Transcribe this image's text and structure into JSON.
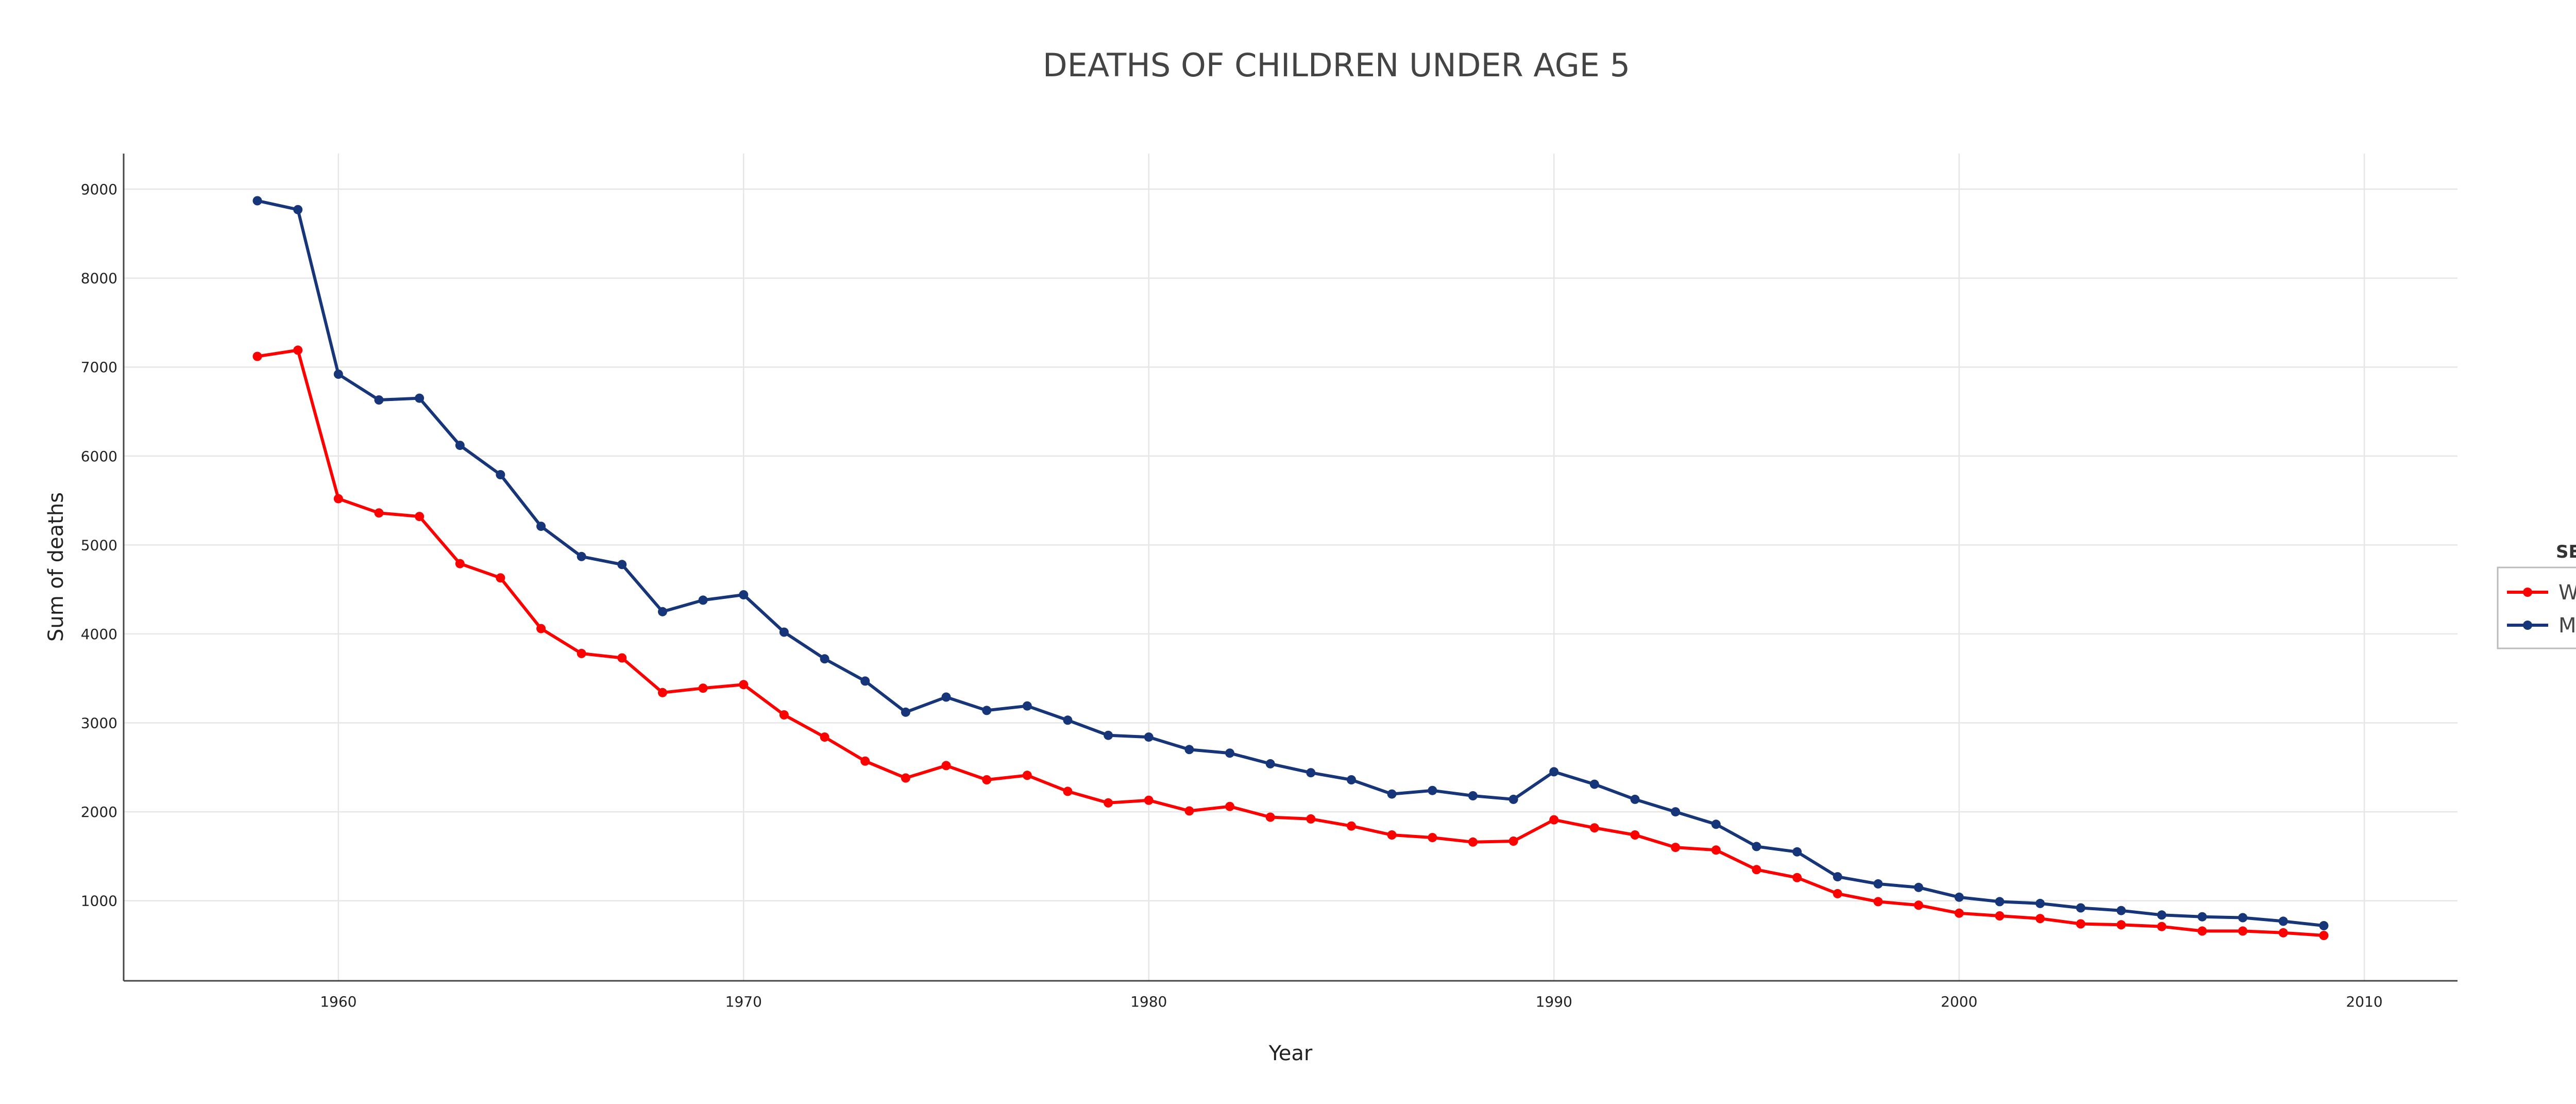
{
  "chart_data": {
    "type": "line",
    "title": "DEATHS OF  CHILDREN  UNDER AGE  5",
    "xlabel": "Year",
    "ylabel": "Sum of deaths",
    "xlim": [
      1954.7,
      2012.3
    ],
    "ylim": [
      100,
      9400
    ],
    "x_ticks": [
      1960,
      1970,
      1980,
      1990,
      2000,
      2010
    ],
    "y_ticks": [
      1000,
      2000,
      3000,
      4000,
      5000,
      6000,
      7000,
      8000,
      9000
    ],
    "grid": true,
    "legend": {
      "title": "SEX",
      "placement": "right"
    },
    "x": [
      1958,
      1959,
      1960,
      1961,
      1962,
      1963,
      1964,
      1965,
      1966,
      1967,
      1968,
      1969,
      1970,
      1971,
      1972,
      1973,
      1974,
      1975,
      1976,
      1977,
      1978,
      1979,
      1980,
      1981,
      1982,
      1983,
      1984,
      1985,
      1986,
      1987,
      1988,
      1989,
      1990,
      1991,
      1992,
      1993,
      1994,
      1995,
      1996,
      1997,
      1998,
      1999,
      2000,
      2001,
      2002,
      2003,
      2004,
      2005,
      2006,
      2007,
      2008,
      2009
    ],
    "series": [
      {
        "name": "Women",
        "color": "#ff0000",
        "values": [
          7120,
          7190,
          5520,
          5360,
          5320,
          4790,
          4630,
          4060,
          3780,
          3730,
          3340,
          3390,
          3430,
          3090,
          2840,
          2570,
          2380,
          2520,
          2360,
          2410,
          2230,
          2100,
          2130,
          2010,
          2060,
          1940,
          1920,
          1840,
          1740,
          1710,
          1660,
          1670,
          1910,
          1820,
          1740,
          1600,
          1570,
          1350,
          1260,
          1080,
          990,
          950,
          860,
          830,
          800,
          740,
          730,
          710,
          660,
          660,
          640,
          610
        ]
      },
      {
        "name": "Men",
        "color": "#17367a",
        "values": [
          8870,
          8770,
          6920,
          6630,
          6650,
          6120,
          5790,
          5210,
          4870,
          4780,
          4250,
          4380,
          4440,
          4020,
          3720,
          3470,
          3120,
          3290,
          3140,
          3190,
          3030,
          2860,
          2840,
          2700,
          2660,
          2540,
          2440,
          2360,
          2200,
          2240,
          2180,
          2140,
          2450,
          2310,
          2140,
          2000,
          1860,
          1610,
          1550,
          1270,
          1190,
          1150,
          1040,
          990,
          970,
          920,
          890,
          840,
          820,
          810,
          770,
          720
        ]
      }
    ]
  }
}
